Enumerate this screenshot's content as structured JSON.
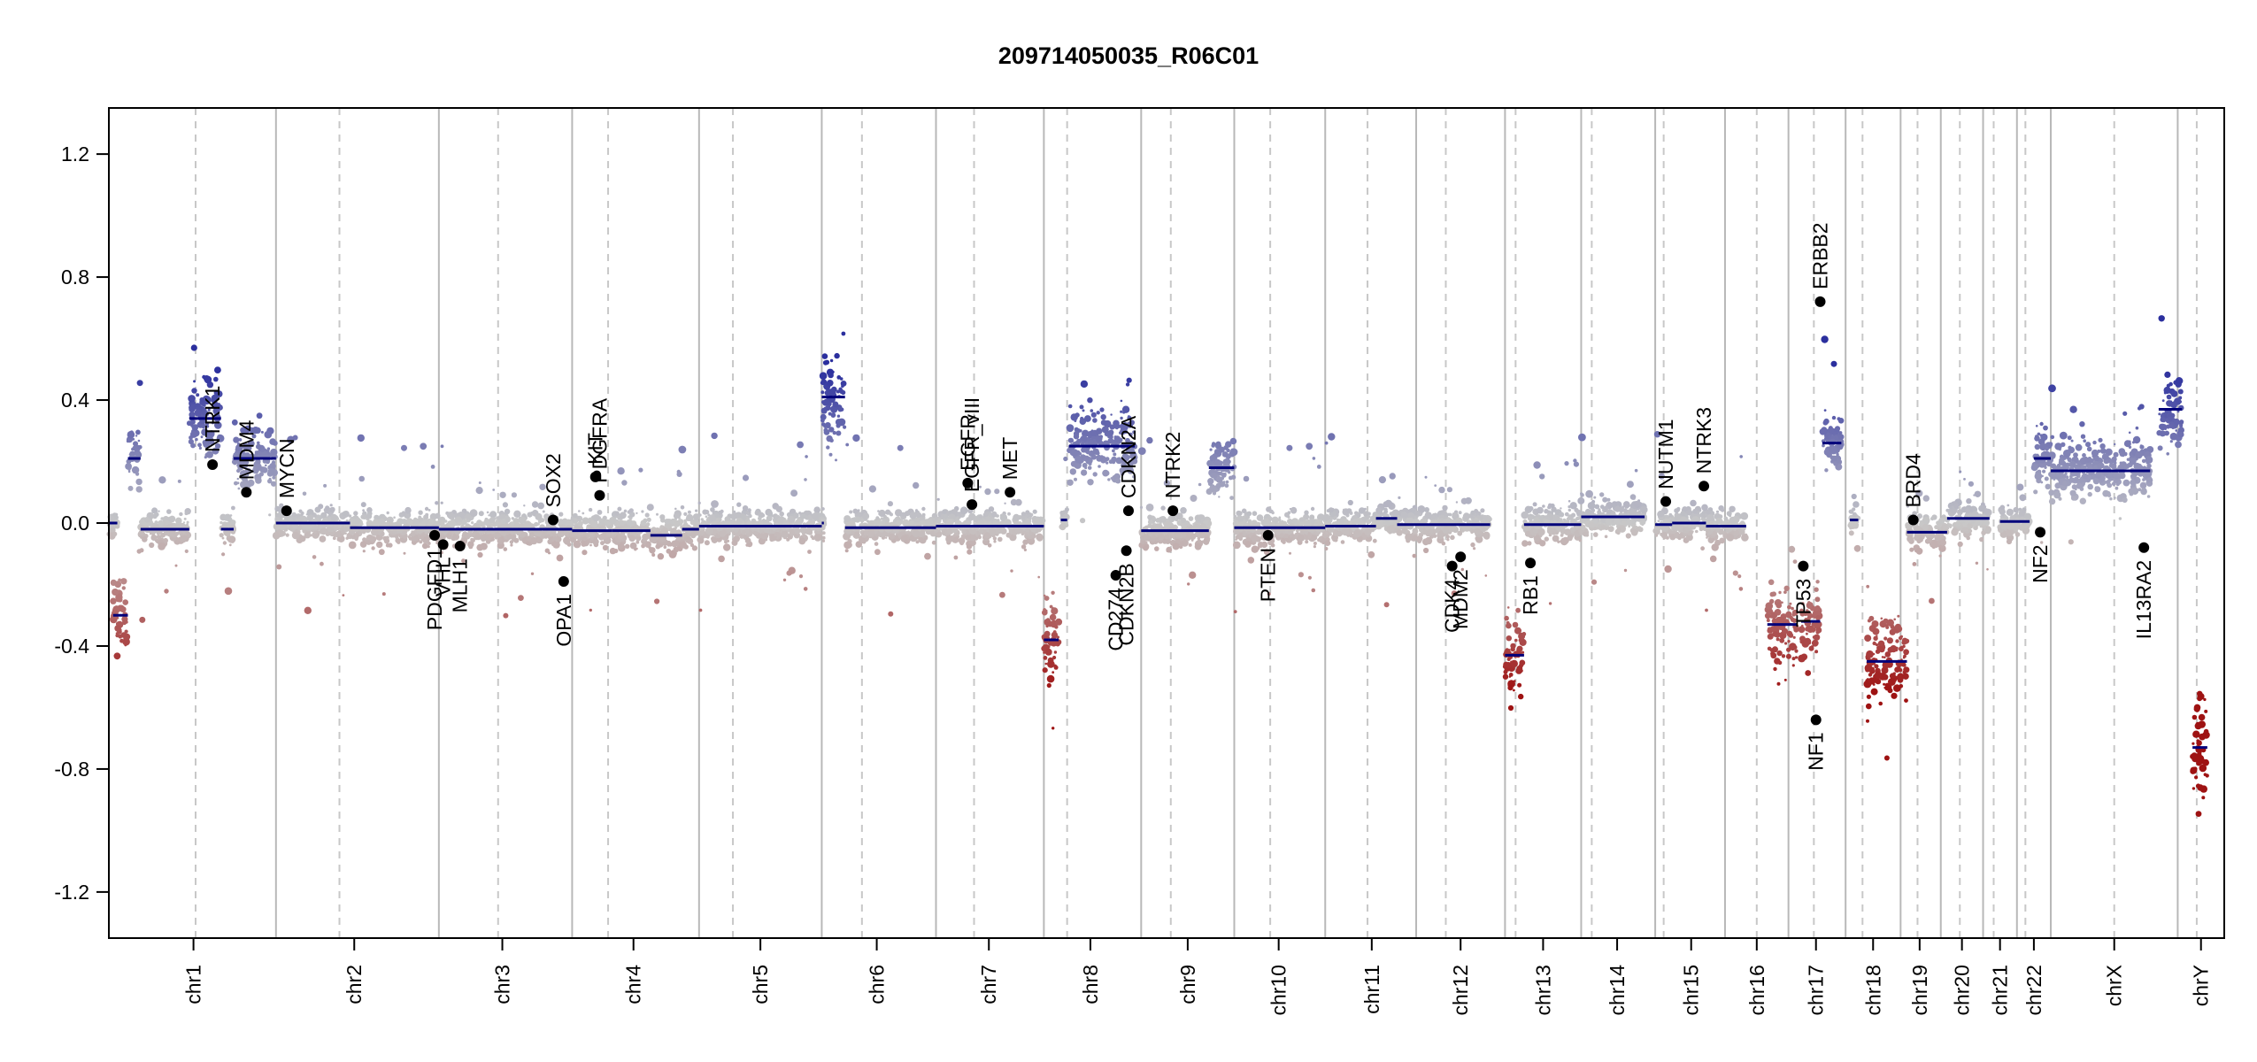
{
  "chart_data": {
    "type": "scatter",
    "title": "209714050035_R06C01",
    "xlabel": "",
    "ylabel": "",
    "ylim": [
      -1.35,
      1.35
    ],
    "y_ticks": [
      -1.2,
      -0.8,
      -0.4,
      0.0,
      0.4,
      0.8,
      1.2
    ],
    "y_tick_labels": [
      "-1.2",
      "-0.8",
      "-0.4",
      "0.0",
      "0.4",
      "0.8",
      "1.2"
    ],
    "x_range": [
      0,
      100
    ],
    "colors": {
      "gain": "#2b2f9e",
      "loss": "#9e1212",
      "neutral": "#c8c8c8",
      "segment": "#00007a",
      "chr_boundary": "#b8b8b8",
      "centromere": "#c8c8c8",
      "gene_point": "#000000"
    },
    "chromosomes": [
      {
        "name": "chr1",
        "start": 0,
        "end": 7.9,
        "centro": 4.1,
        "label_x": 4.0
      },
      {
        "name": "chr2",
        "start": 7.9,
        "end": 15.6,
        "centro": 10.9,
        "label_x": 11.6
      },
      {
        "name": "chr3",
        "start": 15.6,
        "end": 21.9,
        "centro": 18.4,
        "label_x": 18.6
      },
      {
        "name": "chr4",
        "start": 21.9,
        "end": 27.9,
        "centro": 23.6,
        "label_x": 24.8
      },
      {
        "name": "chr5",
        "start": 27.9,
        "end": 33.7,
        "centro": 29.5,
        "label_x": 30.8
      },
      {
        "name": "chr6",
        "start": 33.7,
        "end": 39.1,
        "centro": 35.6,
        "label_x": 36.3
      },
      {
        "name": "chr7",
        "start": 39.1,
        "end": 44.2,
        "centro": 40.9,
        "label_x": 41.6
      },
      {
        "name": "chr8",
        "start": 44.2,
        "end": 48.8,
        "centro": 45.3,
        "label_x": 46.4
      },
      {
        "name": "chr9",
        "start": 48.8,
        "end": 53.2,
        "centro": 50.2,
        "label_x": 51.0
      },
      {
        "name": "chr10",
        "start": 53.2,
        "end": 57.5,
        "centro": 54.9,
        "label_x": 55.3
      },
      {
        "name": "chr11",
        "start": 57.5,
        "end": 61.8,
        "centro": 59.5,
        "label_x": 59.7
      },
      {
        "name": "chr12",
        "start": 61.8,
        "end": 66.0,
        "centro": 63.2,
        "label_x": 63.9
      },
      {
        "name": "chr13",
        "start": 66.0,
        "end": 69.6,
        "centro": 66.5,
        "label_x": 67.8
      },
      {
        "name": "chr14",
        "start": 69.6,
        "end": 73.1,
        "centro": 70.1,
        "label_x": 71.3
      },
      {
        "name": "chr15",
        "start": 73.1,
        "end": 76.4,
        "centro": 73.5,
        "label_x": 74.8
      },
      {
        "name": "chr16",
        "start": 76.4,
        "end": 79.4,
        "centro": 77.9,
        "label_x": 77.9
      },
      {
        "name": "chr17",
        "start": 79.4,
        "end": 82.1,
        "centro": 80.6,
        "label_x": 80.7
      },
      {
        "name": "chr18",
        "start": 82.1,
        "end": 84.7,
        "centro": 82.9,
        "label_x": 83.4
      },
      {
        "name": "chr19",
        "start": 84.7,
        "end": 86.6,
        "centro": 85.5,
        "label_x": 85.6
      },
      {
        "name": "chr20",
        "start": 86.6,
        "end": 88.6,
        "centro": 87.5,
        "label_x": 87.6
      },
      {
        "name": "chr21",
        "start": 88.6,
        "end": 90.2,
        "centro": 89.1,
        "label_x": 89.4
      },
      {
        "name": "chr22",
        "start": 90.2,
        "end": 91.8,
        "centro": 90.6,
        "label_x": 91.0
      },
      {
        "name": "chrX",
        "start": 91.8,
        "end": 97.8,
        "centro": 94.8,
        "label_x": 94.8
      },
      {
        "name": "chrY",
        "start": 97.8,
        "end": 100,
        "centro": 98.7,
        "label_x": 98.9
      }
    ],
    "segments": [
      {
        "x0": 0.0,
        "x1": 0.4,
        "y": 0.0
      },
      {
        "x0": 0.2,
        "x1": 0.9,
        "y": -0.3
      },
      {
        "x0": 0.9,
        "x1": 1.5,
        "y": 0.21
      },
      {
        "x0": 1.5,
        "x1": 3.8,
        "y": -0.02
      },
      {
        "x0": 3.8,
        "x1": 5.3,
        "y": 0.34
      },
      {
        "x0": 5.3,
        "x1": 5.9,
        "y": -0.02
      },
      {
        "x0": 5.9,
        "x1": 7.9,
        "y": 0.21
      },
      {
        "x0": 7.9,
        "x1": 11.4,
        "y": 0.0
      },
      {
        "x0": 11.4,
        "x1": 15.6,
        "y": -0.015
      },
      {
        "x0": 15.6,
        "x1": 21.9,
        "y": -0.02
      },
      {
        "x0": 21.9,
        "x1": 23.8,
        "y": -0.025
      },
      {
        "x0": 23.8,
        "x1": 25.6,
        "y": -0.025
      },
      {
        "x0": 25.6,
        "x1": 27.1,
        "y": -0.04
      },
      {
        "x0": 27.1,
        "x1": 27.9,
        "y": -0.02
      },
      {
        "x0": 27.9,
        "x1": 33.7,
        "y": -0.01
      },
      {
        "x0": 33.7,
        "x1": 33.8,
        "y": 0.0
      },
      {
        "x0": 33.7,
        "x1": 34.8,
        "y": 0.41
      },
      {
        "x0": 34.8,
        "x1": 39.1,
        "y": -0.015
      },
      {
        "x0": 39.1,
        "x1": 44.2,
        "y": -0.01
      },
      {
        "x0": 44.2,
        "x1": 44.4,
        "y": -0.38
      },
      {
        "x0": 44.4,
        "x1": 44.9,
        "y": -0.38
      },
      {
        "x0": 45.0,
        "x1": 45.3,
        "y": 0.01
      },
      {
        "x0": 45.4,
        "x1": 48.5,
        "y": 0.25
      },
      {
        "x0": 48.8,
        "x1": 52.0,
        "y": -0.025
      },
      {
        "x0": 52.0,
        "x1": 53.2,
        "y": 0.18
      },
      {
        "x0": 53.2,
        "x1": 57.5,
        "y": -0.015
      },
      {
        "x0": 57.5,
        "x1": 59.9,
        "y": -0.01
      },
      {
        "x0": 59.9,
        "x1": 60.9,
        "y": 0.015
      },
      {
        "x0": 60.9,
        "x1": 65.3,
        "y": -0.005
      },
      {
        "x0": 66.0,
        "x1": 66.9,
        "y": -0.43
      },
      {
        "x0": 66.9,
        "x1": 69.6,
        "y": -0.005
      },
      {
        "x0": 69.6,
        "x1": 72.6,
        "y": 0.02
      },
      {
        "x0": 73.1,
        "x1": 73.9,
        "y": -0.005
      },
      {
        "x0": 73.9,
        "x1": 75.5,
        "y": 0.0
      },
      {
        "x0": 75.5,
        "x1": 77.4,
        "y": -0.01
      },
      {
        "x0": 78.4,
        "x1": 79.8,
        "y": -0.33
      },
      {
        "x0": 80.0,
        "x1": 80.9,
        "y": -0.32
      },
      {
        "x0": 81.0,
        "x1": 81.9,
        "y": 0.26
      },
      {
        "x0": 82.3,
        "x1": 82.7,
        "y": 0.01
      },
      {
        "x0": 83.1,
        "x1": 85.0,
        "y": -0.45
      },
      {
        "x0": 85.0,
        "x1": 86.9,
        "y": -0.03
      },
      {
        "x0": 86.9,
        "x1": 88.9,
        "y": 0.015
      },
      {
        "x0": 89.4,
        "x1": 90.8,
        "y": 0.005
      },
      {
        "x0": 91.0,
        "x1": 91.8,
        "y": 0.21
      },
      {
        "x0": 91.8,
        "x1": 96.5,
        "y": 0.17
      },
      {
        "x0": 96.9,
        "x1": 98.0,
        "y": 0.37
      },
      {
        "x0": 98.5,
        "x1": 99.2,
        "y": -0.73
      }
    ],
    "genes": [
      {
        "name": "NTRK1",
        "x": 4.9,
        "y": 0.19,
        "label_side": "up"
      },
      {
        "name": "MDM4",
        "x": 6.5,
        "y": 0.1,
        "label_side": "up"
      },
      {
        "name": "MYCN",
        "x": 8.4,
        "y": 0.04,
        "label_side": "up"
      },
      {
        "name": "PDGFD1",
        "x": 15.4,
        "y": -0.04,
        "label_side": "down"
      },
      {
        "name": "VHL",
        "x": 15.8,
        "y": -0.07,
        "label_side": "down"
      },
      {
        "name": "MLH1",
        "x": 16.6,
        "y": -0.075,
        "label_side": "down"
      },
      {
        "name": "SOX2",
        "x": 21.0,
        "y": 0.01,
        "label_side": "up"
      },
      {
        "name": "OPA1",
        "x": 21.5,
        "y": -0.19,
        "label_side": "down"
      },
      {
        "name": "KIT",
        "x": 23.0,
        "y": 0.15,
        "label_side": "up"
      },
      {
        "name": "PDGFRA",
        "x": 23.2,
        "y": 0.09,
        "label_side": "up"
      },
      {
        "name": "EGFR",
        "x": 40.6,
        "y": 0.13,
        "label_side": "up"
      },
      {
        "name": "EGFR_vIII",
        "x": 40.8,
        "y": 0.06,
        "label_side": "up"
      },
      {
        "name": "MET",
        "x": 42.6,
        "y": 0.1,
        "label_side": "up"
      },
      {
        "name": "CD274",
        "x": 47.6,
        "y": -0.17,
        "label_side": "down"
      },
      {
        "name": "CDKN2B",
        "x": 48.1,
        "y": -0.09,
        "label_side": "down"
      },
      {
        "name": "CDKN2A",
        "x": 48.2,
        "y": 0.04,
        "label_side": "up"
      },
      {
        "name": "NTRK2",
        "x": 50.3,
        "y": 0.04,
        "label_side": "up"
      },
      {
        "name": "PTEN",
        "x": 54.8,
        "y": -0.04,
        "label_side": "down"
      },
      {
        "name": "CDK4",
        "x": 63.5,
        "y": -0.14,
        "label_side": "down"
      },
      {
        "name": "MDM2",
        "x": 63.9,
        "y": -0.11,
        "label_side": "down"
      },
      {
        "name": "RB1",
        "x": 67.2,
        "y": -0.13,
        "label_side": "down"
      },
      {
        "name": "NUTM1",
        "x": 73.6,
        "y": 0.07,
        "label_side": "up"
      },
      {
        "name": "NTRK3",
        "x": 75.4,
        "y": 0.12,
        "label_side": "up"
      },
      {
        "name": "TP53",
        "x": 80.1,
        "y": -0.14,
        "label_side": "down"
      },
      {
        "name": "NF1",
        "x": 80.7,
        "y": -0.64,
        "label_side": "down"
      },
      {
        "name": "ERBB2",
        "x": 80.9,
        "y": 0.72,
        "label_side": "up"
      },
      {
        "name": "BRD4",
        "x": 85.3,
        "y": 0.01,
        "label_side": "up"
      },
      {
        "name": "NF2",
        "x": 91.3,
        "y": -0.03,
        "label_side": "down"
      },
      {
        "name": "IL13RA2",
        "x": 96.2,
        "y": -0.08,
        "label_side": "down"
      }
    ]
  }
}
